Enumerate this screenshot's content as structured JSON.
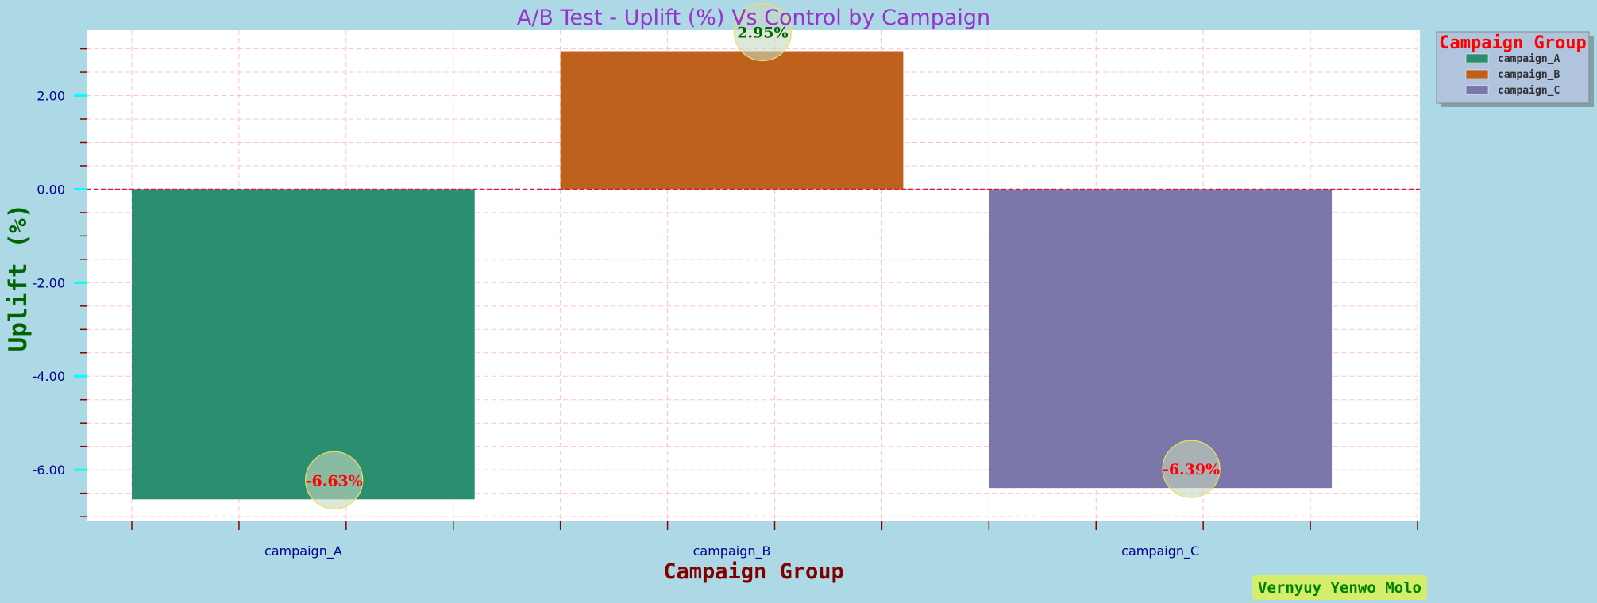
{
  "chart_data": {
    "type": "bar",
    "title": "A/B Test - Uplift (%) Vs Control by Campaign",
    "xlabel": "Campaign Group",
    "ylabel": "Uplift (%)",
    "categories": [
      "campaign_A",
      "campaign_B",
      "campaign_C"
    ],
    "values": [
      -6.63,
      2.95,
      -6.39
    ],
    "data_labels": [
      "-6.63%",
      "2.95%",
      "-6.39%"
    ],
    "y_ticks": [
      "2.00",
      "0.00",
      "-2.00",
      "-4.00",
      "-6.00"
    ],
    "ylim": [
      -7.1,
      3.4
    ],
    "grid": true,
    "legend": {
      "title": "Campaign Group",
      "placement": "outside-top-right",
      "entries": [
        "campaign_A",
        "campaign_B",
        "campaign_C"
      ]
    },
    "colors": {
      "campaign_A": "#2b8e70",
      "campaign_B": "#bd611d",
      "campaign_C": "#7c77aa"
    },
    "label_colors": {
      "negative": "#ff0000",
      "positive": "#006400"
    }
  },
  "footer": {
    "credit": "Vernyuy Yenwo Molo"
  }
}
